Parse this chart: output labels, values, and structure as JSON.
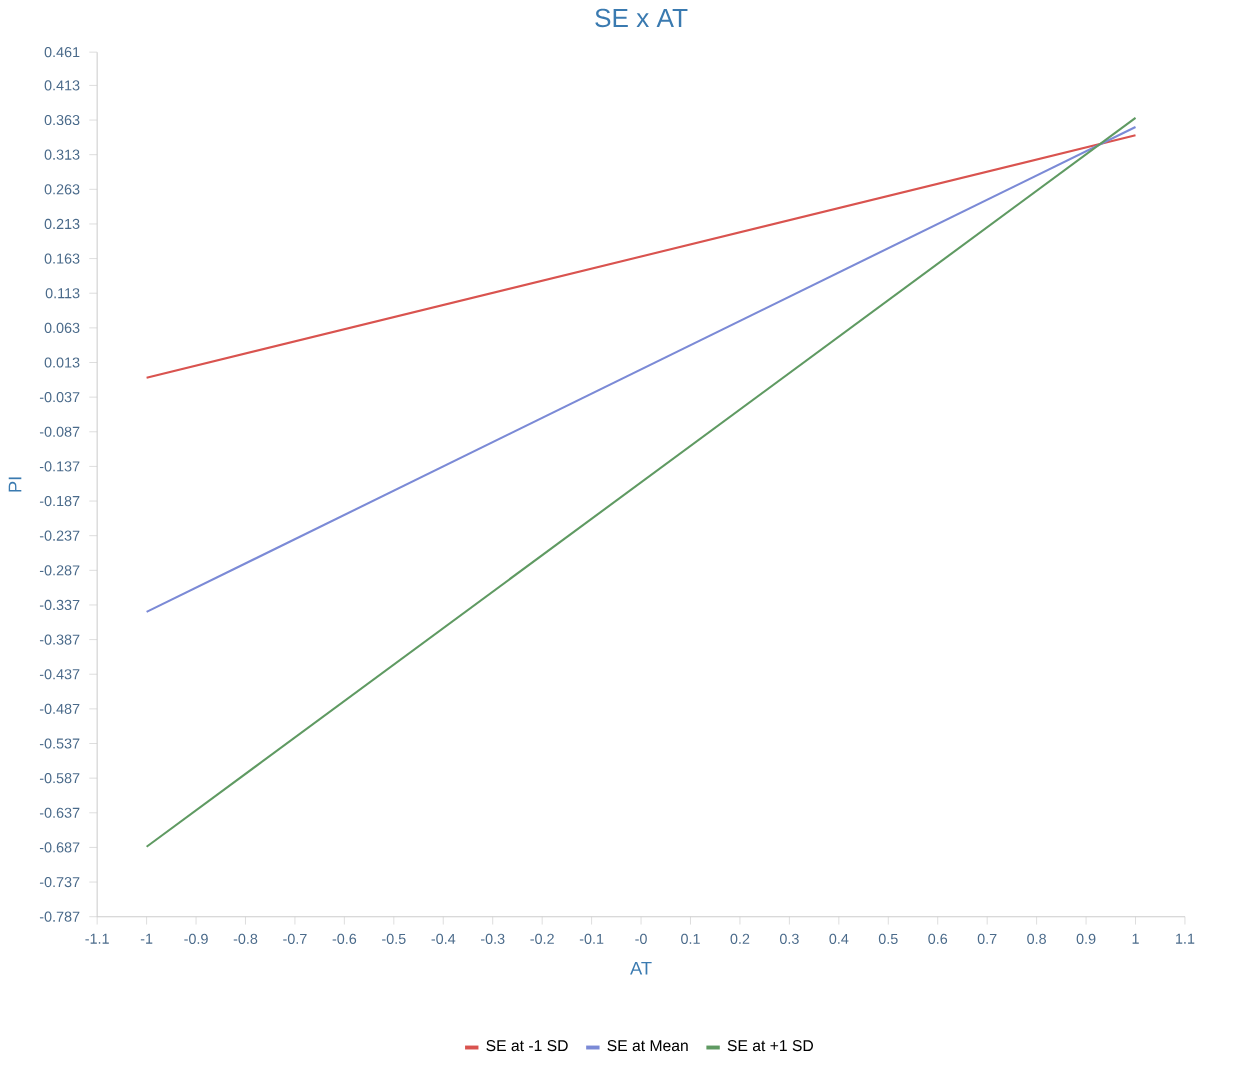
{
  "chart_data": {
    "type": "line",
    "title": "SE x AT",
    "xlabel": "AT",
    "ylabel": "PI",
    "x": [
      -1,
      1
    ],
    "series": [
      {
        "name": "SE at -1 SD",
        "color": "#d9534f",
        "values": [
          -0.009,
          0.341
        ]
      },
      {
        "name": "SE at Mean",
        "color": "#7b8ad6",
        "values": [
          -0.347,
          0.353
        ]
      },
      {
        "name": "SE at +1 SD",
        "color": "#5f9a62",
        "values": [
          -0.686,
          0.366
        ]
      }
    ],
    "xlim": [
      -1.1,
      1.1
    ],
    "xticks": [
      -1.1,
      -1,
      -0.9,
      -0.8,
      -0.7,
      -0.6,
      -0.5,
      -0.4,
      -0.3,
      -0.2,
      -0.1,
      {
        "value": 0,
        "label": "-0"
      },
      0.1,
      0.2,
      0.3,
      0.4,
      0.5,
      0.6,
      0.7,
      0.8,
      0.9,
      1,
      1.1
    ],
    "ylim": [
      -0.787,
      0.461
    ],
    "yticks": [
      0.461,
      0.413,
      0.363,
      0.313,
      0.263,
      0.213,
      0.163,
      0.113,
      0.063,
      0.013,
      -0.037,
      -0.087,
      -0.137,
      -0.187,
      -0.237,
      -0.287,
      -0.337,
      -0.387,
      -0.437,
      -0.487,
      -0.537,
      -0.587,
      -0.637,
      -0.687,
      -0.737,
      -0.787
    ],
    "grid": false,
    "legend": "bottom",
    "marker": "none",
    "line_style": "solid"
  }
}
